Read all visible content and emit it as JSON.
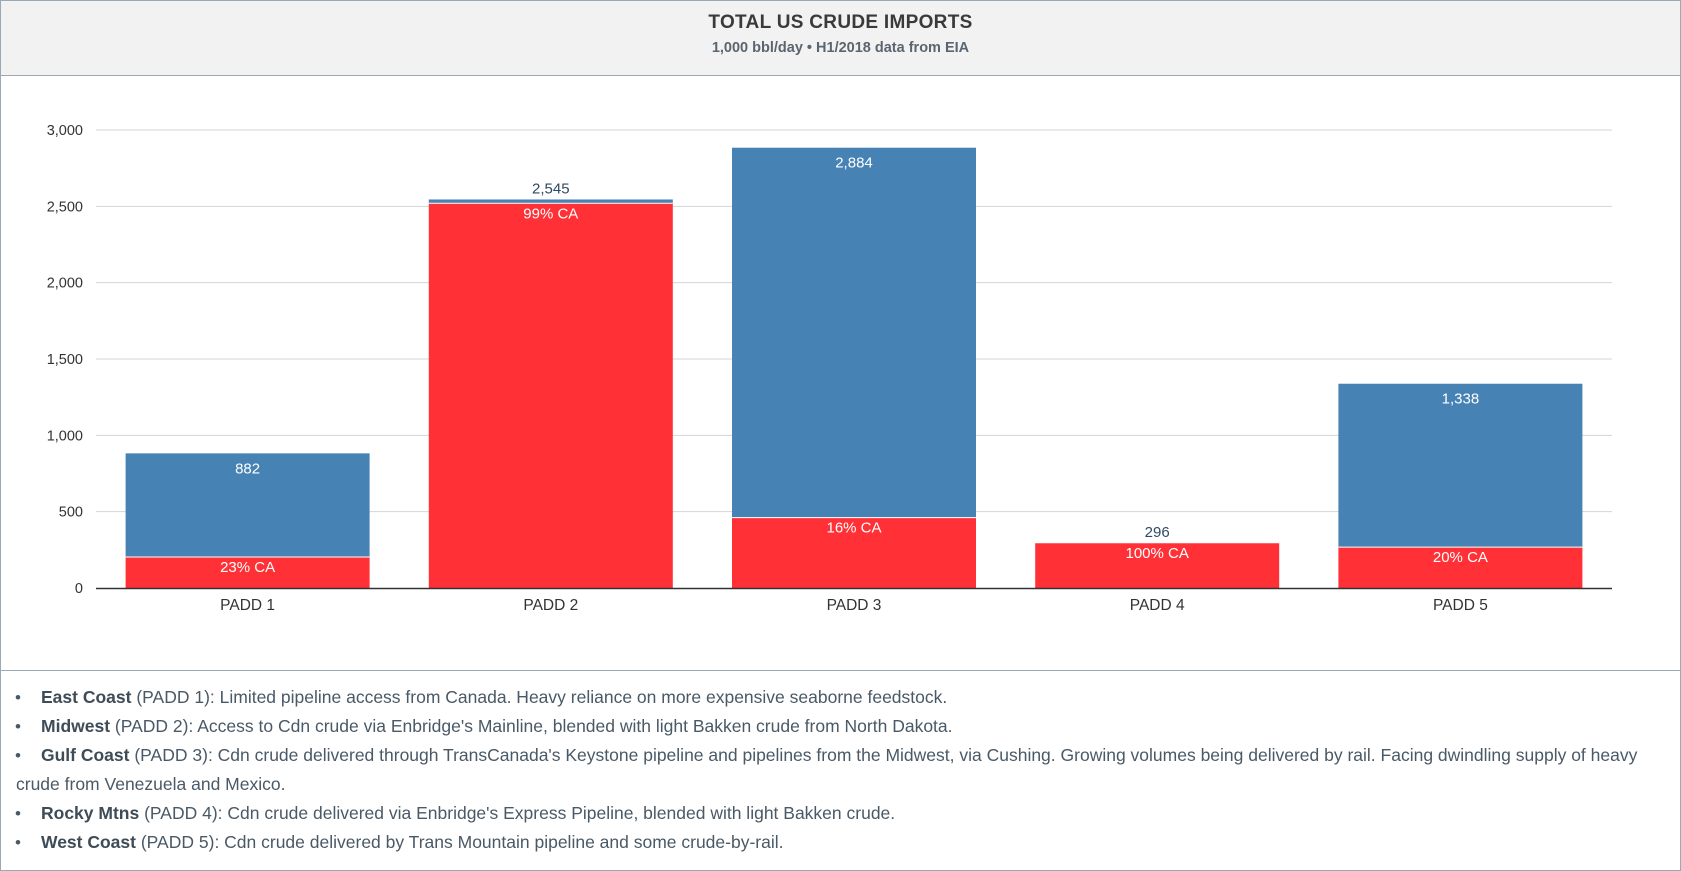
{
  "header": {
    "title": "TOTAL US CRUDE IMPORTS",
    "subtitle": "1,000 bbl/day • H1/2018 data from EIA"
  },
  "colors": {
    "canada": "#ff3036",
    "other": "#4682b4",
    "grid": "#d4d4d4",
    "axis": "#333333"
  },
  "chart_data": {
    "type": "bar",
    "stacked": true,
    "categories": [
      "PADD 1",
      "PADD 2",
      "PADD 3",
      "PADD 4",
      "PADD 5"
    ],
    "totals": [
      882,
      2545,
      2884,
      296,
      1338
    ],
    "total_labels": [
      "882",
      "2,545",
      "2,884",
      "296",
      "1,338"
    ],
    "canada_share_labels": [
      "23% CA",
      "99% CA",
      "16% CA",
      "100% CA",
      "20% CA"
    ],
    "series": [
      {
        "values": [
          203,
          2520,
          461,
          296,
          268
        ]
      },
      {
        "values": [
          679,
          25,
          2423,
          0,
          1070
        ]
      }
    ],
    "ylim": [
      0,
      3000
    ],
    "yticks": [
      0,
      500,
      1000,
      1500,
      2000,
      2500,
      3000
    ],
    "ytick_labels": [
      "0",
      "500",
      "1,000",
      "1,500",
      "2,000",
      "2,500",
      "3,000"
    ],
    "grid": true,
    "legend": "none"
  },
  "notes": [
    {
      "region": "East Coast",
      "padd": "(PADD 1)",
      "text": ": Limited pipeline access from Canada. Heavy reliance on more expensive seaborne feedstock."
    },
    {
      "region": "Midwest",
      "padd": "(PADD 2)",
      "text": ": Access to Cdn crude via Enbridge's Mainline, blended with light Bakken crude from North Dakota."
    },
    {
      "region": "Gulf Coast",
      "padd": "(PADD 3)",
      "text": ": Cdn crude delivered through TransCanada's Keystone pipeline and pipelines from the Midwest, via Cushing. Growing volumes being delivered by rail. Facing dwindling supply of heavy crude from Venezuela and Mexico."
    },
    {
      "region": "Rocky Mtns",
      "padd": "(PADD 4)",
      "text": ": Cdn crude delivered via Enbridge's Express Pipeline, blended with light Bakken crude."
    },
    {
      "region": "West Coast",
      "padd": "(PADD 5)",
      "text": ": Cdn crude delivered by Trans Mountain pipeline and some crude-by-rail."
    }
  ]
}
